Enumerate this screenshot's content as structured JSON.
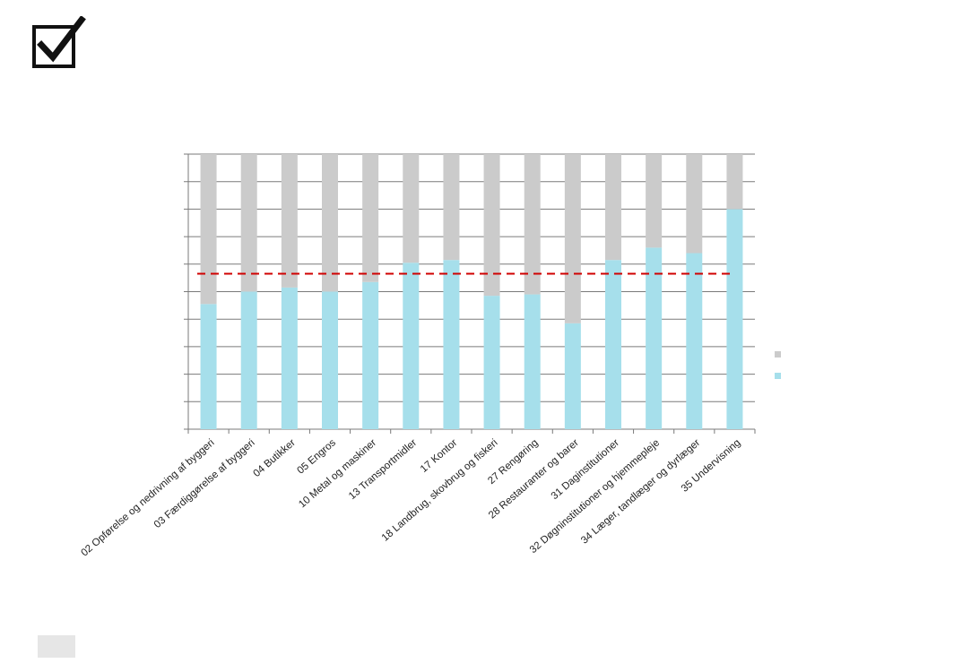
{
  "colors": {
    "share": "#a6dfeb",
    "rest": "#cbcbcb",
    "average": "#d00000",
    "axis": "#7a7a7a"
  },
  "icons": {
    "logo": "checkbox-checked-icon"
  },
  "chart_data": {
    "type": "bar",
    "stacked": true,
    "title": "",
    "xlabel": "",
    "ylabel": "",
    "ylim": [
      0,
      100
    ],
    "y_gridlines": 10,
    "y_tick_labels_visible": false,
    "legend": {
      "position": "right",
      "entries": [
        "",
        ""
      ]
    },
    "categories": [
      "02 Opførelse og nedrivning af byggeri",
      "03 Færdiggørelse af byggeri",
      "04 Butikker",
      "05 Engros",
      "10 Metal og maskiner",
      "13 Transportmidler",
      "17 Kontor",
      "18 Landbrug, skovbrug og fiskeri",
      "27 Rengøring",
      "28 Restauranter og barer",
      "31 Daginstitutioner",
      "32 Døgninstitutioner og hjemmepleje",
      "34 Læger, tandlæger og dyrlæger",
      "35 Undervisning"
    ],
    "series": [
      {
        "values": [
          45.5,
          50,
          51.5,
          50,
          53.5,
          60.5,
          61.5,
          48.5,
          49,
          38.5,
          61.5,
          66,
          64,
          80
        ]
      },
      {
        "values": [
          54.5,
          50,
          48.5,
          50,
          46.5,
          39.5,
          38.5,
          51.5,
          51,
          61.5,
          38.5,
          34,
          36,
          20
        ]
      }
    ],
    "reference_line": {
      "value": 56.5,
      "style": "dashed"
    }
  }
}
